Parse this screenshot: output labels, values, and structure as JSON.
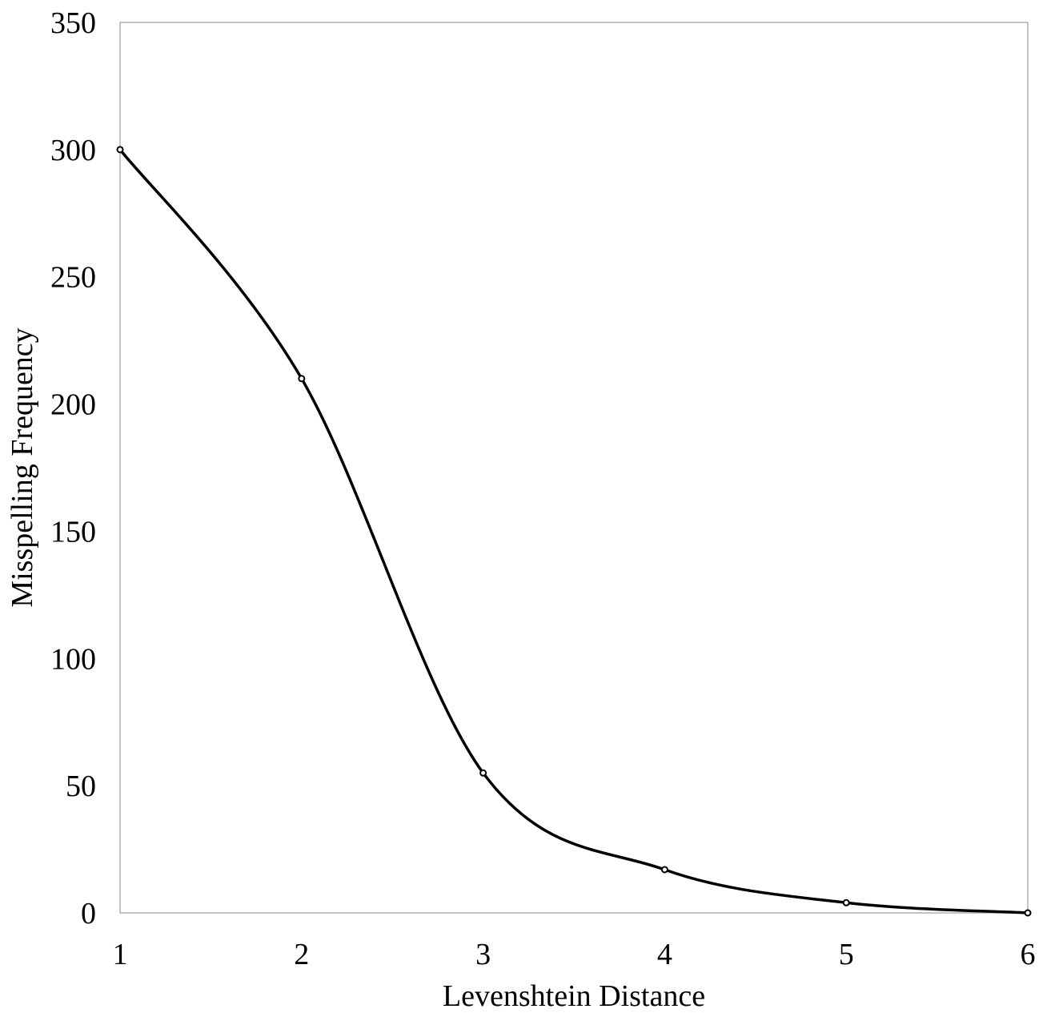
{
  "chart_data": {
    "type": "line",
    "title": "",
    "xlabel": "Levenshtein Distance",
    "ylabel": "Misspelling Frequency",
    "x": [
      1,
      2,
      3,
      4,
      5,
      6
    ],
    "series": [
      {
        "values": [
          300,
          210,
          55,
          17,
          4,
          0
        ],
        "color": "#000000",
        "smooth": true,
        "markers": "small-circle"
      }
    ],
    "xlim": [
      1,
      6
    ],
    "ylim": [
      0,
      350
    ],
    "xticks": [
      "1",
      "2",
      "3",
      "4",
      "5",
      "6"
    ],
    "yticks": [
      "0",
      "50",
      "100",
      "150",
      "200",
      "250",
      "300",
      "350"
    ],
    "grid": false,
    "legend": "none"
  }
}
